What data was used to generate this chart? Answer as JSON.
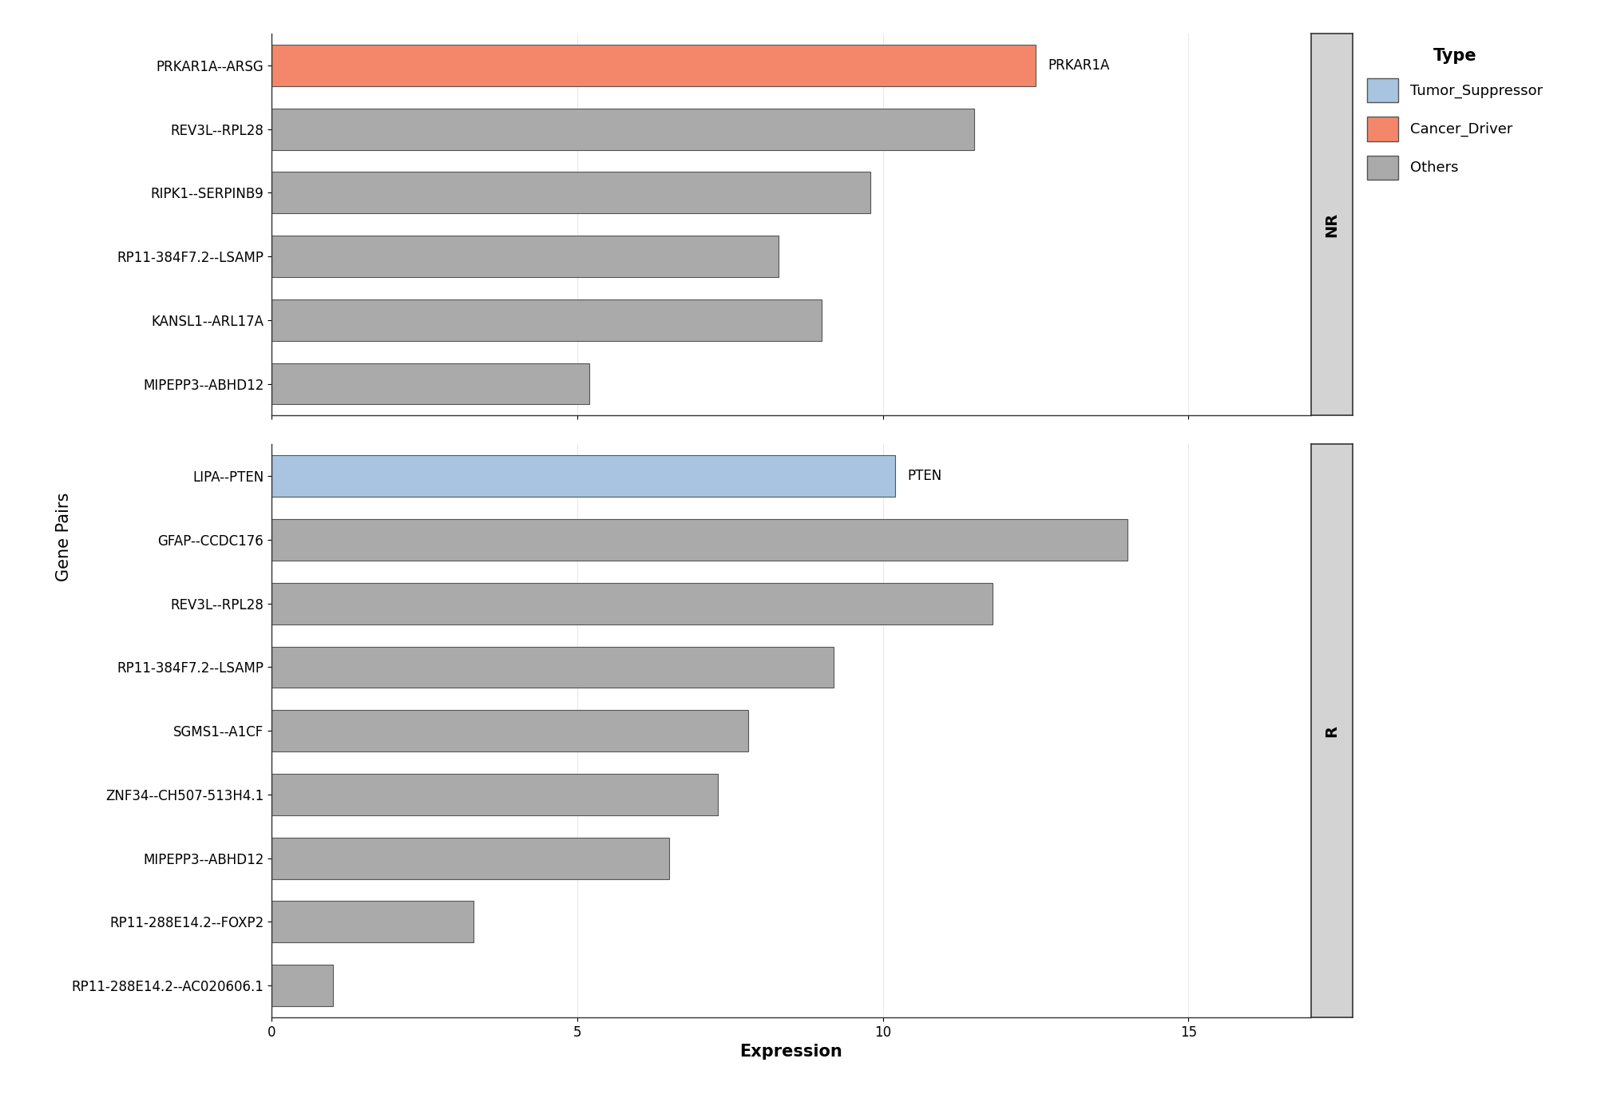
{
  "panel_NR": {
    "label": "NR",
    "gene_pairs": [
      "PRKAR1A--ARSG",
      "REV3L--RPL28",
      "RIPK1--SERPINB9",
      "RP11-384F7.2--LSAMP",
      "KANSL1--ARL17A",
      "MIPEPP3--ABHD12"
    ],
    "values": [
      12.5,
      11.5,
      9.8,
      8.3,
      9.0,
      5.2
    ],
    "colors": [
      "#F4876A",
      "#AAAAAA",
      "#AAAAAA",
      "#AAAAAA",
      "#AAAAAA",
      "#AAAAAA"
    ],
    "annotations": [
      {
        "index": 0,
        "text": "PRKAR1A",
        "x": 12.5
      }
    ]
  },
  "panel_R": {
    "label": "R",
    "gene_pairs": [
      "LIPA--PTEN",
      "GFAP--CCDC176",
      "REV3L--RPL28",
      "RP11-384F7.2--LSAMP",
      "SGMS1--A1CF",
      "ZNF34--CH507-513H4.1",
      "MIPEPP3--ABHD12",
      "RP11-288E14.2--FOXP2",
      "RP11-288E14.2--AC020606.1"
    ],
    "values": [
      10.2,
      14.0,
      11.8,
      9.2,
      7.8,
      7.3,
      6.5,
      3.3,
      1.0
    ],
    "colors": [
      "#A8C4E0",
      "#AAAAAA",
      "#AAAAAA",
      "#AAAAAA",
      "#AAAAAA",
      "#AAAAAA",
      "#AAAAAA",
      "#AAAAAA",
      "#AAAAAA"
    ],
    "annotations": [
      {
        "index": 0,
        "text": "PTEN",
        "x": 10.2
      }
    ]
  },
  "xlim": [
    0,
    17
  ],
  "xticks": [
    0,
    5,
    10,
    15
  ],
  "xlabel": "Expression",
  "ylabel": "Gene Pairs",
  "legend_title": "Type",
  "legend_items": [
    {
      "label": "Tumor_Suppressor",
      "color": "#A8C4E0"
    },
    {
      "label": "Cancer_Driver",
      "color": "#F4876A"
    },
    {
      "label": "Others",
      "color": "#AAAAAA"
    }
  ],
  "bar_edgecolor": "#555555",
  "bar_linewidth": 0.8,
  "strip_color": "#D3D3D3",
  "background_color": "#FFFFFF",
  "grid_color": "#E8E8E8",
  "annotation_fontsize": 12,
  "label_fontsize": 14,
  "tick_fontsize": 12,
  "legend_fontsize": 13,
  "strip_fontsize": 14,
  "bar_height": 0.65
}
